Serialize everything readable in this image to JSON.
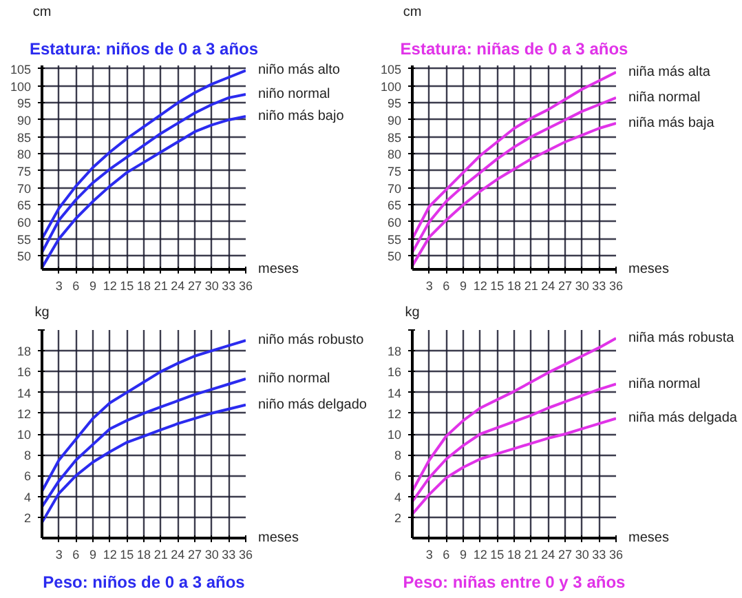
{
  "chart_data": [
    {
      "type": "line",
      "title": "Estatura: niños de 0 a 3 años",
      "ylabel": "cm",
      "xlabel": "meses",
      "x": [
        0,
        3,
        6,
        9,
        12,
        15,
        18,
        21,
        24,
        27,
        30,
        33,
        36
      ],
      "xlim": [
        0,
        36
      ],
      "ylim": [
        46,
        106
      ],
      "xticks": [
        3,
        6,
        9,
        12,
        15,
        18,
        21,
        24,
        27,
        30,
        33,
        36
      ],
      "yticks": [
        50,
        55,
        60,
        65,
        70,
        75,
        80,
        85,
        90,
        95,
        100,
        105
      ],
      "grid": true,
      "series": [
        {
          "name": "niño más alto",
          "color": "#2b2bef",
          "values": [
            55,
            64,
            70.5,
            76,
            80.5,
            84.5,
            88,
            91.5,
            95,
            98,
            100.5,
            102.5,
            104.5
          ]
        },
        {
          "name": "niño normal",
          "color": "#2b2bef",
          "values": [
            51,
            60.5,
            66.5,
            71.5,
            75.5,
            79,
            82.5,
            86,
            89,
            92,
            94.5,
            96.5,
            97.5
          ]
        },
        {
          "name": "niño más bajo",
          "color": "#2b2bef",
          "values": [
            46.5,
            55,
            61,
            66,
            70.5,
            74.5,
            77.5,
            80.5,
            83.5,
            86.5,
            88.5,
            90,
            91
          ]
        }
      ]
    },
    {
      "type": "line",
      "title": "Estatura: niñas de 0 a 3 años",
      "ylabel": "cm",
      "xlabel": "meses",
      "x": [
        0,
        3,
        6,
        9,
        12,
        15,
        18,
        21,
        24,
        27,
        30,
        33,
        36
      ],
      "xlim": [
        0,
        36
      ],
      "ylim": [
        46,
        106
      ],
      "xticks": [
        3,
        6,
        9,
        12,
        15,
        18,
        21,
        24,
        27,
        30,
        33,
        36
      ],
      "yticks": [
        50,
        55,
        60,
        65,
        70,
        75,
        80,
        85,
        90,
        95,
        100,
        105
      ],
      "grid": true,
      "series": [
        {
          "name": "niña más alta",
          "color": "#e033e8",
          "values": [
            55,
            64.5,
            69.5,
            74.5,
            79.5,
            83.5,
            87.5,
            90.5,
            93,
            96,
            99,
            101.5,
            104
          ]
        },
        {
          "name": "niña normal",
          "color": "#e033e8",
          "values": [
            51,
            60,
            66,
            70.5,
            74.5,
            78.5,
            82,
            85,
            87.5,
            90,
            92.5,
            94.5,
            96.5
          ]
        },
        {
          "name": "niña más baja",
          "color": "#e033e8",
          "values": [
            47,
            55.5,
            60.5,
            65,
            69,
            72.5,
            75.5,
            78.5,
            81,
            83.5,
            85.5,
            87.5,
            89
          ]
        }
      ]
    },
    {
      "type": "line",
      "title": "Peso: niños de 0 a 3 años",
      "ylabel": "kg",
      "xlabel": "meses",
      "x": [
        0,
        3,
        6,
        9,
        12,
        15,
        18,
        21,
        24,
        27,
        30,
        33,
        36
      ],
      "xlim": [
        0,
        36
      ],
      "ylim": [
        0,
        20
      ],
      "xticks": [
        3,
        6,
        9,
        12,
        15,
        18,
        21,
        24,
        27,
        30,
        33,
        36
      ],
      "yticks": [
        2,
        4,
        6,
        8,
        10,
        12,
        14,
        16,
        18,
        {
          "value": 20,
          "label": null
        }
      ],
      "grid": true,
      "series": [
        {
          "name": "niño más robusto",
          "color": "#2b2bef",
          "values": [
            4.5,
            7.5,
            9.5,
            11.5,
            13,
            14,
            15,
            16,
            16.8,
            17.5,
            18,
            18.5,
            19
          ]
        },
        {
          "name": "niño normal",
          "color": "#2b2bef",
          "values": [
            3,
            5.5,
            7.5,
            9,
            10.5,
            11.3,
            12,
            12.6,
            13.2,
            13.8,
            14.3,
            14.8,
            15.3
          ]
        },
        {
          "name": "niño más delgado",
          "color": "#2b2bef",
          "values": [
            1.5,
            4.3,
            6,
            7.3,
            8.3,
            9.2,
            9.8,
            10.4,
            11,
            11.5,
            12,
            12.4,
            12.8
          ]
        }
      ]
    },
    {
      "type": "line",
      "title": "Peso: niñas entre 0 y 3 años",
      "ylabel": "kg",
      "xlabel": "meses",
      "x": [
        0,
        3,
        6,
        9,
        12,
        15,
        18,
        21,
        24,
        27,
        30,
        33,
        36
      ],
      "xlim": [
        0,
        36
      ],
      "ylim": [
        0,
        20
      ],
      "xticks": [
        3,
        6,
        9,
        12,
        15,
        18,
        21,
        24,
        27,
        30,
        33,
        36
      ],
      "yticks": [
        2,
        4,
        6,
        8,
        10,
        12,
        14,
        16,
        18,
        {
          "value": 20,
          "label": null
        }
      ],
      "grid": true,
      "series": [
        {
          "name": "niña más robusta",
          "color": "#e033e8",
          "values": [
            4.5,
            7.5,
            9.8,
            11.3,
            12.5,
            13.3,
            14.1,
            15,
            15.9,
            16.7,
            17.5,
            18.3,
            19.2
          ]
        },
        {
          "name": "niña normal",
          "color": "#e033e8",
          "values": [
            3.5,
            5.8,
            7.6,
            8.9,
            10,
            10.6,
            11.2,
            11.8,
            12.5,
            13.1,
            13.7,
            14.3,
            14.8
          ]
        },
        {
          "name": "niña más delgada",
          "color": "#e033e8",
          "values": [
            2.3,
            4.2,
            5.8,
            6.8,
            7.6,
            8.1,
            8.6,
            9.1,
            9.6,
            10,
            10.5,
            11,
            11.5
          ]
        }
      ]
    }
  ]
}
